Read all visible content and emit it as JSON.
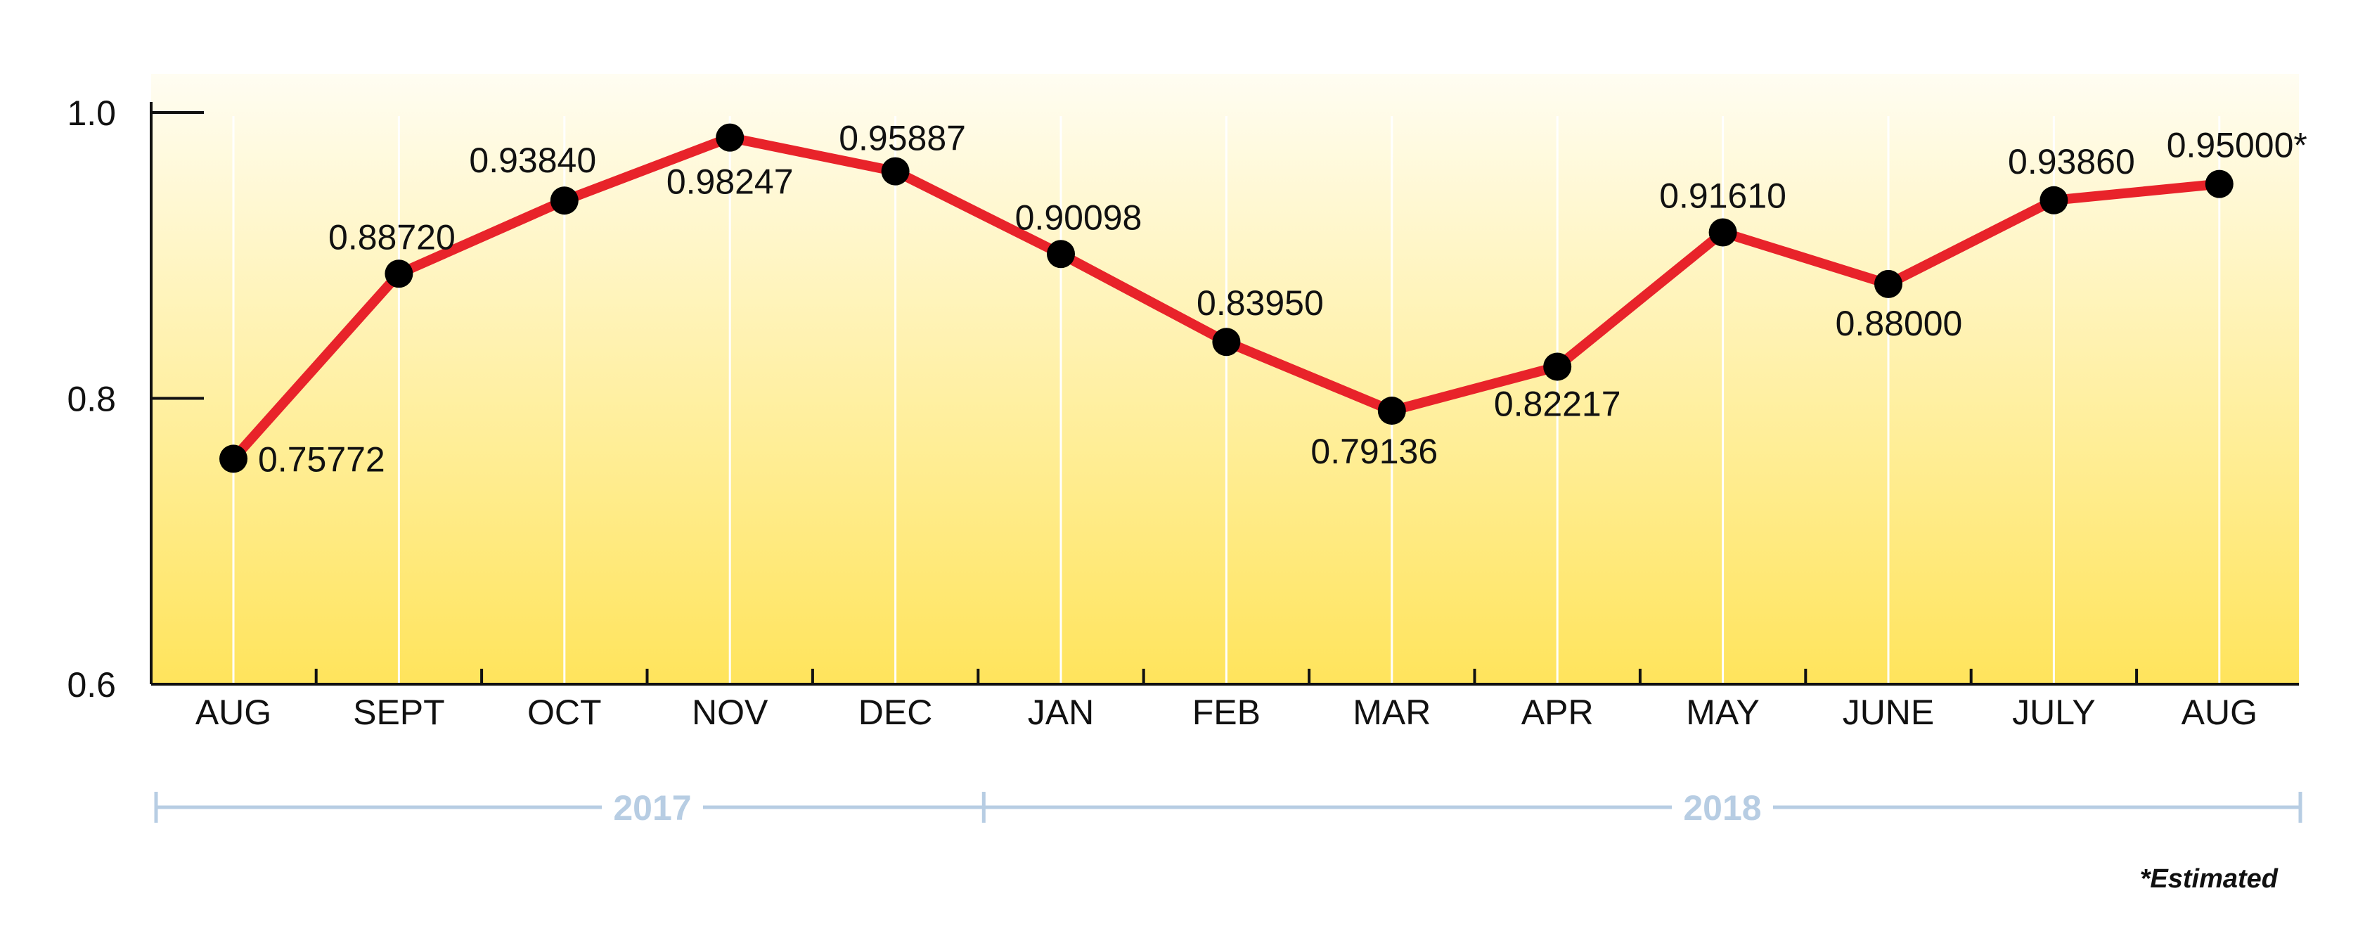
{
  "chart_data": {
    "type": "line",
    "categories": [
      "AUG",
      "SEPT",
      "OCT",
      "NOV",
      "DEC",
      "JAN",
      "FEB",
      "MAR",
      "APR",
      "MAY",
      "JUNE",
      "JULY",
      "AUG"
    ],
    "values": [
      0.75772,
      0.8872,
      0.9384,
      0.98247,
      0.95887,
      0.90098,
      0.8395,
      0.79136,
      0.82217,
      0.9161,
      0.88,
      0.9386,
      0.95
    ],
    "data_labels": [
      "0.75772",
      "0.88720",
      "0.93840",
      "0.98247",
      "0.95887",
      "0.90098",
      "0.83950",
      "0.79136",
      "0.82217",
      "0.91610",
      "0.88000",
      "0.93860",
      "0.95000*"
    ],
    "yticks": [
      "0.6",
      "0.8",
      "1.0"
    ],
    "ylim": [
      0.6,
      1.0
    ],
    "year_groups": [
      {
        "label": "2017",
        "start_index": 0,
        "end_index": 4
      },
      {
        "label": "2018",
        "start_index": 5,
        "end_index": 12
      }
    ],
    "footnote": "*Estimated",
    "grid": "vertical",
    "colors": {
      "line": "#e8232a",
      "marker": "#000000",
      "gradient_top": "#fffdf2",
      "gradient_bottom": "#ffe45c",
      "year_axis": "#b7cde3"
    }
  }
}
